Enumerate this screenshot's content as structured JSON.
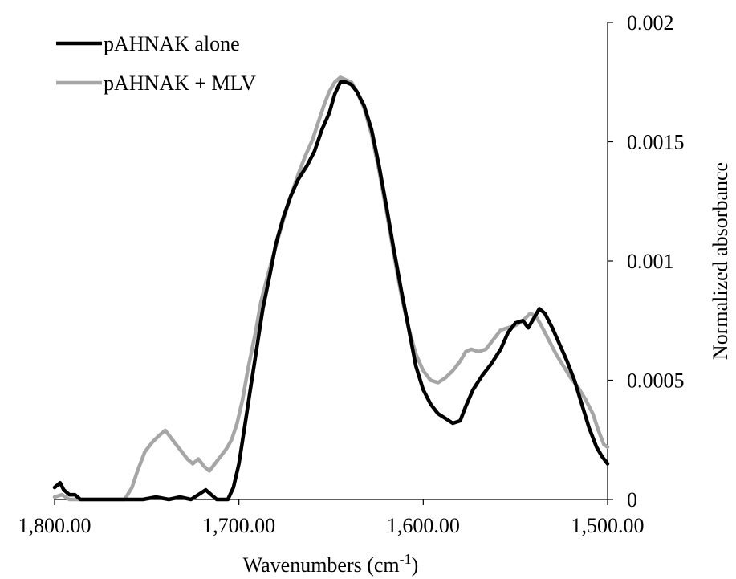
{
  "chart_data": {
    "type": "line",
    "title": "",
    "xlabel_main": "Wavenumbers  (cm",
    "xlabel_sup": "-1",
    "xlabel_end": ")",
    "ylabel": "Normalized  absorbance",
    "xlim": [
      1800,
      1500
    ],
    "ylim": [
      0,
      0.002
    ],
    "x_reversed": true,
    "y_axis_side": "right",
    "grid": false,
    "legend_position": "top-left",
    "x_ticks": [
      {
        "value": 1800,
        "label": "1,800.00"
      },
      {
        "value": 1700,
        "label": "1,700.00"
      },
      {
        "value": 1600,
        "label": "1,600.00"
      },
      {
        "value": 1500,
        "label": "1,500.00"
      }
    ],
    "y_ticks": [
      {
        "value": 0,
        "label": "0"
      },
      {
        "value": 0.0005,
        "label": "0.0005"
      },
      {
        "value": 0.001,
        "label": "0.001"
      },
      {
        "value": 0.0015,
        "label": "0.0015"
      },
      {
        "value": 0.002,
        "label": "0.002"
      }
    ],
    "series": [
      {
        "name": "pAHNAK alone",
        "color": "#000000",
        "points": [
          [
            1800,
            5e-05
          ],
          [
            1797,
            7e-05
          ],
          [
            1795,
            4e-05
          ],
          [
            1792,
            2e-05
          ],
          [
            1789,
            2e-05
          ],
          [
            1786,
            0.0
          ],
          [
            1780,
            0.0
          ],
          [
            1770,
            0.0
          ],
          [
            1760,
            0.0
          ],
          [
            1752,
            0.0
          ],
          [
            1745,
            1e-05
          ],
          [
            1738,
            0.0
          ],
          [
            1732,
            1e-05
          ],
          [
            1726,
            0.0
          ],
          [
            1720,
            3e-05
          ],
          [
            1718,
            4e-05
          ],
          [
            1715,
            2e-05
          ],
          [
            1712,
            0.0
          ],
          [
            1709,
            0.0
          ],
          [
            1706,
            0.0
          ],
          [
            1703,
            5e-05
          ],
          [
            1700,
            0.00015
          ],
          [
            1697,
            0.0003
          ],
          [
            1694,
            0.00045
          ],
          [
            1690,
            0.00065
          ],
          [
            1687,
            0.0008
          ],
          [
            1683,
            0.00095
          ],
          [
            1680,
            0.00107
          ],
          [
            1676,
            0.00118
          ],
          [
            1672,
            0.00127
          ],
          [
            1668,
            0.00134
          ],
          [
            1663,
            0.0014
          ],
          [
            1659,
            0.00146
          ],
          [
            1655,
            0.00155
          ],
          [
            1651,
            0.00162
          ],
          [
            1648,
            0.0017
          ],
          [
            1645,
            0.00175
          ],
          [
            1642,
            0.00175
          ],
          [
            1639,
            0.00174
          ],
          [
            1636,
            0.00171
          ],
          [
            1632,
            0.00165
          ],
          [
            1628,
            0.00155
          ],
          [
            1624,
            0.0014
          ],
          [
            1620,
            0.00123
          ],
          [
            1616,
            0.00105
          ],
          [
            1612,
            0.00088
          ],
          [
            1608,
            0.00072
          ],
          [
            1604,
            0.00056
          ],
          [
            1600,
            0.00046
          ],
          [
            1596,
            0.0004
          ],
          [
            1592,
            0.00036
          ],
          [
            1588,
            0.00034
          ],
          [
            1584,
            0.00032
          ],
          [
            1580,
            0.00033
          ],
          [
            1577,
            0.00039
          ],
          [
            1573,
            0.00046
          ],
          [
            1568,
            0.00052
          ],
          [
            1563,
            0.00057
          ],
          [
            1558,
            0.00063
          ],
          [
            1554,
            0.0007
          ],
          [
            1550,
            0.00074
          ],
          [
            1546,
            0.00075
          ],
          [
            1543,
            0.00072
          ],
          [
            1540,
            0.00076
          ],
          [
            1537,
            0.0008
          ],
          [
            1534,
            0.00078
          ],
          [
            1530,
            0.00072
          ],
          [
            1526,
            0.00065
          ],
          [
            1522,
            0.00058
          ],
          [
            1518,
            0.0005
          ],
          [
            1514,
            0.0004
          ],
          [
            1510,
            0.0003
          ],
          [
            1506,
            0.00022
          ],
          [
            1503,
            0.00018
          ],
          [
            1500,
            0.00015
          ]
        ]
      },
      {
        "name": "pAHNAK + MLV",
        "color": "#a6a6a6",
        "points": [
          [
            1800,
            1e-05
          ],
          [
            1796,
            2e-05
          ],
          [
            1792,
            0.0
          ],
          [
            1788,
            0.0
          ],
          [
            1780,
            0.0
          ],
          [
            1770,
            0.0
          ],
          [
            1762,
            0.0
          ],
          [
            1758,
            5e-05
          ],
          [
            1755,
            0.00012
          ],
          [
            1751,
            0.0002
          ],
          [
            1747,
            0.00024
          ],
          [
            1743,
            0.00027
          ],
          [
            1740,
            0.00029
          ],
          [
            1737,
            0.00026
          ],
          [
            1734,
            0.00023
          ],
          [
            1731,
            0.0002
          ],
          [
            1728,
            0.00017
          ],
          [
            1725,
            0.00015
          ],
          [
            1722,
            0.00017
          ],
          [
            1719,
            0.00014
          ],
          [
            1716,
            0.00012
          ],
          [
            1713,
            0.00015
          ],
          [
            1710,
            0.00018
          ],
          [
            1707,
            0.00021
          ],
          [
            1704,
            0.00025
          ],
          [
            1701,
            0.00032
          ],
          [
            1698,
            0.00042
          ],
          [
            1695,
            0.00055
          ],
          [
            1691,
            0.0007
          ],
          [
            1688,
            0.00083
          ],
          [
            1684,
            0.00095
          ],
          [
            1680,
            0.00106
          ],
          [
            1676,
            0.00117
          ],
          [
            1672,
            0.00127
          ],
          [
            1668,
            0.00136
          ],
          [
            1664,
            0.00144
          ],
          [
            1660,
            0.00151
          ],
          [
            1657,
            0.00158
          ],
          [
            1654,
            0.00165
          ],
          [
            1651,
            0.00171
          ],
          [
            1648,
            0.00175
          ],
          [
            1645,
            0.00177
          ],
          [
            1642,
            0.00176
          ],
          [
            1639,
            0.00175
          ],
          [
            1636,
            0.00171
          ],
          [
            1632,
            0.00164
          ],
          [
            1628,
            0.00153
          ],
          [
            1624,
            0.00138
          ],
          [
            1620,
            0.00121
          ],
          [
            1616,
            0.00103
          ],
          [
            1612,
            0.00086
          ],
          [
            1608,
            0.00072
          ],
          [
            1604,
            0.00061
          ],
          [
            1600,
            0.00054
          ],
          [
            1596,
            0.0005
          ],
          [
            1592,
            0.00049
          ],
          [
            1588,
            0.00051
          ],
          [
            1584,
            0.00054
          ],
          [
            1580,
            0.00058
          ],
          [
            1577,
            0.00062
          ],
          [
            1574,
            0.00063
          ],
          [
            1570,
            0.00062
          ],
          [
            1566,
            0.00063
          ],
          [
            1562,
            0.00067
          ],
          [
            1558,
            0.00071
          ],
          [
            1554,
            0.00072
          ],
          [
            1550,
            0.00073
          ],
          [
            1546,
            0.00075
          ],
          [
            1542,
            0.00078
          ],
          [
            1539,
            0.00077
          ],
          [
            1536,
            0.00073
          ],
          [
            1532,
            0.00067
          ],
          [
            1528,
            0.00061
          ],
          [
            1524,
            0.00056
          ],
          [
            1520,
            0.00051
          ],
          [
            1516,
            0.00047
          ],
          [
            1512,
            0.00042
          ],
          [
            1508,
            0.00036
          ],
          [
            1505,
            0.00029
          ],
          [
            1502,
            0.00023
          ],
          [
            1500,
            0.00022
          ]
        ]
      }
    ]
  }
}
